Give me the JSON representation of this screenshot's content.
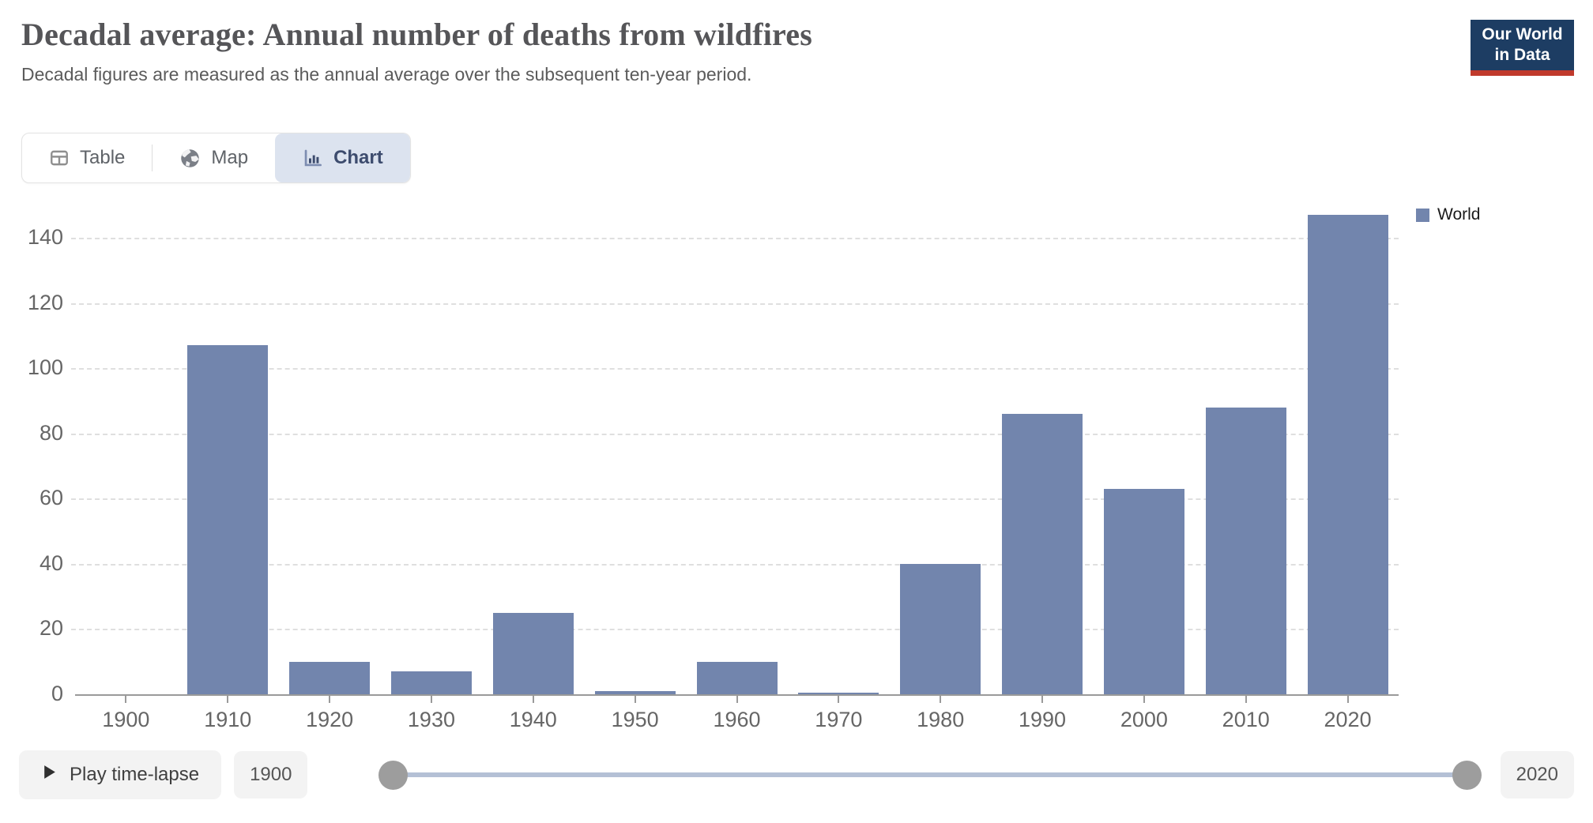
{
  "header": {
    "title": "Decadal average: Annual number of deaths from wildfires",
    "subtitle": "Decadal figures are measured as the annual average over the subsequent ten-year period."
  },
  "logo": {
    "line1": "Our World",
    "line2": "in Data",
    "bg_color": "#1d3d63",
    "accent_color": "#c0392b"
  },
  "tabs": {
    "active": "chart",
    "items": [
      {
        "id": "table",
        "label": "Table"
      },
      {
        "id": "map",
        "label": "Map"
      },
      {
        "id": "chart",
        "label": "Chart"
      }
    ]
  },
  "chart_data": {
    "type": "bar",
    "title": "Decadal average: Annual number of deaths from wildfires",
    "categories": [
      "1900",
      "1910",
      "1920",
      "1930",
      "1940",
      "1950",
      "1960",
      "1970",
      "1980",
      "1990",
      "2000",
      "2010",
      "2020"
    ],
    "series": [
      {
        "name": "World",
        "color": "#7285ad",
        "values": [
          0,
          107,
          10,
          7,
          25,
          1,
          10,
          0.5,
          40,
          86,
          63,
          88,
          147
        ]
      }
    ],
    "xlabel": "",
    "ylabel": "",
    "ylim": [
      0,
      150
    ],
    "yticks": [
      0,
      20,
      40,
      60,
      80,
      100,
      120,
      140
    ],
    "grid": "horizontal-dashed",
    "legend_position": "right-top",
    "colors": {
      "bar": "#7285ad",
      "gridline": "#dfdfdf",
      "axis": "#9a9a9a",
      "tick_label": "#666666"
    }
  },
  "timeline": {
    "play_label": "Play time-lapse",
    "start_year": "1900",
    "end_year": "2020"
  }
}
